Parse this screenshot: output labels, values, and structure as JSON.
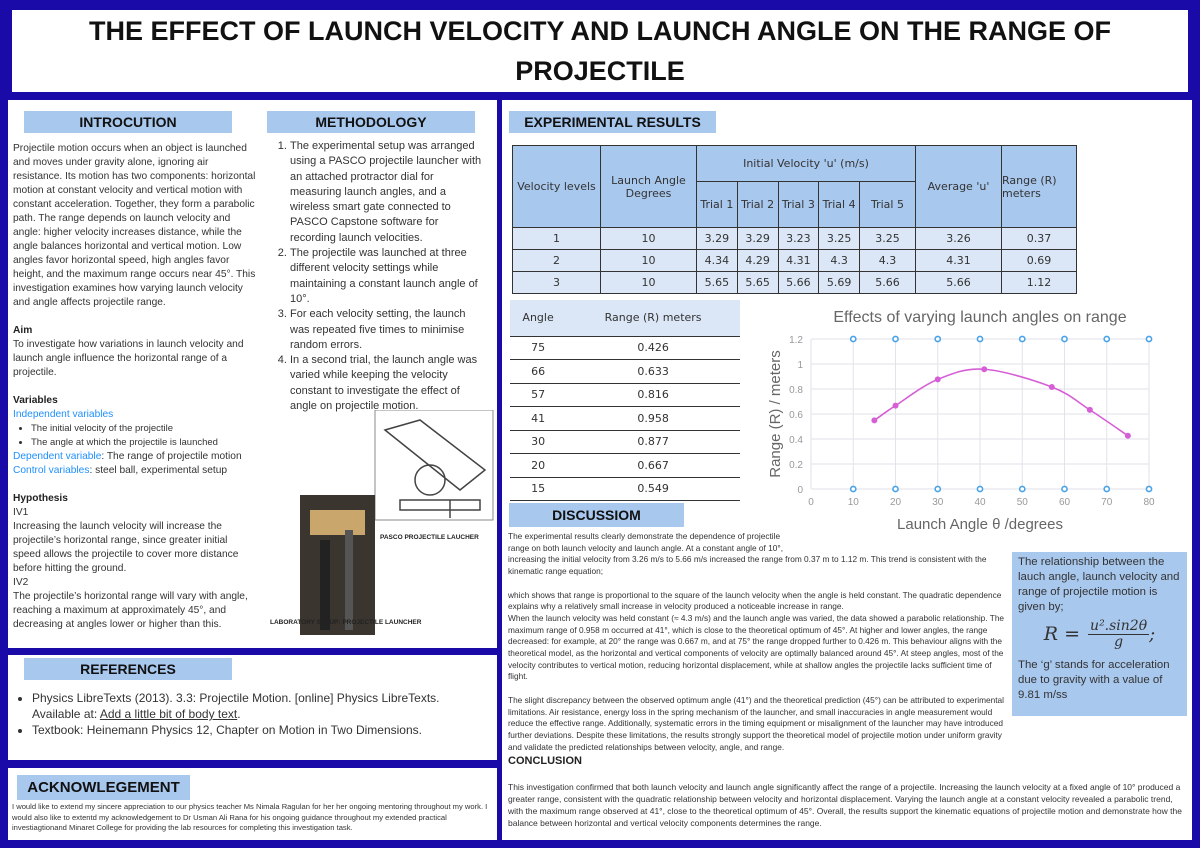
{
  "title": "THE EFFECT OF LAUNCH VELOCITY AND LAUNCH ANGLE ON THE RANGE OF PROJECTILE",
  "intro": {
    "heading": "INTROCUTION",
    "text": "Projectile motion occurs when an object is launched and moves under gravity alone, ignoring air resistance. Its motion has two components: horizontal motion at constant velocity and vertical motion with constant acceleration. Together, they form a parabolic path. The range depends on launch velocity and angle: higher velocity increases distance, while the angle balances horizontal and vertical motion. Low angles favor horizontal speed, high angles favor height, and the maximum range occurs near 45°. This investigation examines how varying launch velocity and angle affects projectile range.",
    "aim_heading": "Aim",
    "aim": "To investigate how variations in launch velocity and launch angle influence the horizontal range of a projectile.",
    "variables_heading": "Variables",
    "independent_label": "Independent variables",
    "independent": [
      "The initial velocity of the projectile",
      "The angle at which the projectile is launched"
    ],
    "dependent_label": "Dependent variable",
    "dependent": ": The range of projectile motion",
    "control_label": "Control variables",
    "control": ": steel ball, experimental setup",
    "hypothesis_heading": "Hypothesis",
    "iv1_label": "IV1",
    "iv1": "Increasing the launch velocity will increase the projectile’s horizontal range, since greater initial speed allows the projectile to cover more distance before hitting the ground.",
    "iv2_label": "IV2",
    "iv2": "The projectile’s horizontal range will vary with angle, reaching a maximum at approximately 45°, and decreasing at angles lower or higher than this."
  },
  "methodology": {
    "heading": "METHODOLOGY",
    "steps": [
      "The experimental setup was arranged using a PASCO projectile launcher with an attached protractor dial for measuring launch angles, and a wireless smart gate connected to PASCO Capstone software for recording launch velocities.",
      "The projectile was launched at three different velocity settings while maintaining a constant launch angle of 10°.",
      "For each velocity setting, the launch was repeated five times to minimise random errors.",
      "In a second trial, the launch angle was varied while keeping the velocity constant to investigate the effect of angle on projectile motion."
    ],
    "caption1": "PASCO PROJECTILE LAUCHER",
    "caption2": "LABORATORY SETUP: PROJECTILE LAUNCHER"
  },
  "references": {
    "heading": "REFERENCES",
    "items": [
      {
        "text": "Physics LibreTexts (2013). 3.3: Projectile Motion. [online] Physics LibreTexts. Available at: ",
        "link": "Add a little bit of body text",
        "after": "."
      },
      {
        "text": "Textbook: Heinemann Physics 12, Chapter on Motion in Two Dimensions.",
        "link": "",
        "after": ""
      }
    ]
  },
  "acknowledgement": {
    "heading": "ACKNOWLEGEMENT",
    "text": "I would like to extend my sincere appreciation to our physics teacher Ms Nimala Ragulan for her her ongoing mentoring throughout my work. I would also like to extentd my acknowledgement to  Dr Usman Ali Rana for his ongoing guidance throughout my extended practical investiagtionand Minaret College for providing the lab resources for completing this investigation task."
  },
  "results": {
    "heading": "EXPERIMENTAL RESULTS",
    "table1": {
      "h_level": "Velocity levels",
      "h_angle": "Launch Angle Degrees",
      "h_initial": "Initial Velocity 'u' (m/s)",
      "trials": [
        "Trial 1",
        "Trial 2",
        "Trial 3",
        "Trial 4",
        "Trial 5"
      ],
      "h_avg": "Average 'u'",
      "h_range": "Range (R) meters",
      "rows": [
        [
          "1",
          "10",
          "3.29",
          "3.29",
          "3.23",
          "3.25",
          "3.25",
          "3.26",
          "0.37"
        ],
        [
          "2",
          "10",
          "4.34",
          "4.29",
          "4.31",
          "4.3",
          "4.3",
          "4.31",
          "0.69"
        ],
        [
          "3",
          "10",
          "5.65",
          "5.65",
          "5.66",
          "5.69",
          "5.66",
          "5.66",
          "1.12"
        ]
      ]
    },
    "table2": {
      "h_angle": "Angle",
      "h_range": "Range (R) meters",
      "rows": [
        [
          "75",
          "0.426"
        ],
        [
          "66",
          "0.633"
        ],
        [
          "57",
          "0.816"
        ],
        [
          "41",
          "0.958"
        ],
        [
          "30",
          "0.877"
        ],
        [
          "20",
          "0.667"
        ],
        [
          "15",
          "0.549"
        ]
      ]
    }
  },
  "chart_data": {
    "type": "line",
    "title": "Effects of varying launch angles on range",
    "xlabel": "Launch Angle θ /degrees",
    "ylabel": "Range (R) / meters",
    "xlim": [
      0,
      80
    ],
    "ylim": [
      0,
      1.2
    ],
    "xticks": [
      "0",
      "10",
      "20",
      "30",
      "40",
      "50",
      "60",
      "70",
      "80"
    ],
    "yticks": [
      "0",
      "0.2",
      "0.4",
      "0.6",
      "0.8",
      "1",
      "1.2"
    ],
    "grid": true,
    "series": [
      {
        "color": "#d65fd6",
        "smooth": true,
        "points": [
          [
            15,
            0.549
          ],
          [
            20,
            0.667
          ],
          [
            30,
            0.877
          ],
          [
            41,
            0.958
          ],
          [
            57,
            0.816
          ],
          [
            66,
            0.633
          ],
          [
            75,
            0.426
          ]
        ]
      },
      {
        "color": "#4aa3e8",
        "line": false,
        "points": [
          [
            10,
            0
          ],
          [
            20,
            0
          ],
          [
            30,
            0
          ],
          [
            40,
            0
          ],
          [
            50,
            0
          ],
          [
            60,
            0
          ],
          [
            70,
            0
          ],
          [
            80,
            0
          ],
          [
            10,
            1.2
          ],
          [
            20,
            1.2
          ],
          [
            30,
            1.2
          ],
          [
            40,
            1.2
          ],
          [
            50,
            1.2
          ],
          [
            60,
            1.2
          ],
          [
            70,
            1.2
          ],
          [
            80,
            1.2
          ]
        ]
      }
    ]
  },
  "discussion": {
    "heading": "DISCUSSIOM",
    "p1": "The experimental results clearly demonstrate the dependence of projectile range on both launch velocity and launch angle. At a constant angle of 10°,",
    "p1b": "increasing the initial velocity from 3.26 m/s to 5.66 m/s increased the range from 0.37 m to 1.12 m. This trend is consistent with the kinematic range equation;",
    "p2": "which shows that range is proportional to the square of the launch velocity when the angle is held constant. The quadratic dependence explains why a relatively small increase in velocity produced a noticeable increase in range.",
    "p3": "When the launch velocity was held constant (≈ 4.3 m/s) and the launch angle was varied, the data showed a parabolic relationship. The maximum range of 0.958 m occurred at 41°, which is close to the theoretical optimum of 45°. At higher and lower angles, the range decreased: for example, at 20° the range was 0.667 m, and at 75° the range dropped further to 0.426 m. This behaviour aligns with the theoretical model, as the horizontal and vertical components of velocity are optimally balanced around 45°. At steep angles, most of the velocity contributes to vertical motion, reducing horizontal displacement, while at shallow angles the projectile lacks sufficient time of flight.",
    "p4": "The slight discrepancy between the observed optimum angle (41°) and the theoretical prediction (45°) can be attributed to experimental limitations. Air resistance, energy loss in the spring mechanism of the launcher, and small inaccuracies in angle measurement would reduce the effective range. Additionally, systematic errors in the timing equipment or misalignment of the launcher may have introduced further deviations. Despite these limitations, the results strongly support the theoretical model of projectile motion under uniform gravity and validate the predicted relationships between velocity, angle, and range."
  },
  "formula_box": {
    "intro": "The relationship between the lauch angle, launch velocity and range of projectile motion is given by;",
    "lhs": "R =",
    "num": "u².sin2θ",
    "den": "g",
    "semi": ";",
    "note": "The ‘g’ stands for acceleration due to gravity with a value of 9.81 m/ss"
  },
  "conclusion": {
    "heading": "CONCLUSION",
    "text": "This investigation confirmed that both launch velocity and launch angle significantly affect the range of a projectile. Increasing the launch velocity at a fixed angle of 10° produced a greater range, consistent with the quadratic relationship between velocity and horizontal displacement. Varying the launch angle at a constant velocity revealed a parabolic trend, with the maximum range observed at 41°, close to the theoretical optimum of 45°. Overall, the results support the kinematic equations of projectile motion and demonstrate how the balance between horizontal and vertical velocity components determines the range."
  }
}
